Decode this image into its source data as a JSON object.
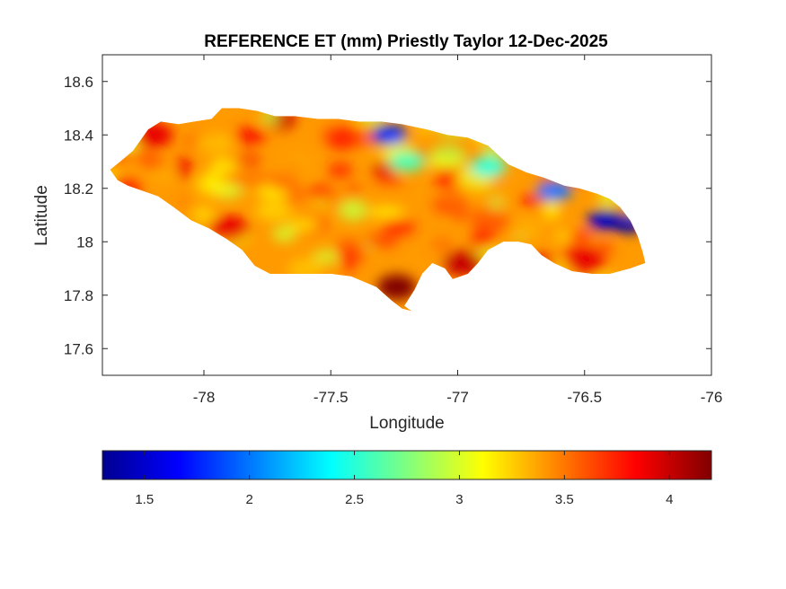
{
  "chart_data": {
    "type": "heatmap",
    "title": "REFERENCE ET (mm) Priestly Taylor 12-Dec-2025",
    "xlabel": "Longitude",
    "ylabel": "Latitude",
    "xlim": [
      -78.4,
      -76
    ],
    "ylim": [
      17.5,
      18.7
    ],
    "xticks": [
      -78,
      -77.5,
      -77,
      -76.5,
      -76
    ],
    "yticks": [
      17.6,
      17.8,
      18,
      18.2,
      18.4,
      18.6
    ],
    "colorbar": {
      "orientation": "horizontal",
      "placement": "bottom",
      "colormap": "jet",
      "range": [
        1.3,
        4.2
      ],
      "ticks": [
        1.5,
        2,
        2.5,
        3,
        3.5,
        4
      ]
    },
    "field_summary": {
      "region": "Jamaica",
      "low_areas": [
        {
          "lon": -76.42,
          "lat": 18.08,
          "value": 1.5
        },
        {
          "lon": -76.33,
          "lat": 18.07,
          "value": 1.4
        },
        {
          "lon": -76.62,
          "lat": 18.19,
          "value": 2.0
        },
        {
          "lon": -77.27,
          "lat": 18.4,
          "value": 1.8
        },
        {
          "lon": -76.88,
          "lat": 18.28,
          "value": 2.5
        },
        {
          "lon": -77.2,
          "lat": 18.3,
          "value": 2.6
        }
      ],
      "high_areas": [
        {
          "lon": -77.24,
          "lat": 17.83,
          "value": 4.2
        },
        {
          "lon": -76.98,
          "lat": 17.92,
          "value": 4.0
        },
        {
          "lon": -78.2,
          "lat": 18.4,
          "value": 3.9
        },
        {
          "lon": -76.5,
          "lat": 17.93,
          "value": 3.9
        },
        {
          "lon": -77.9,
          "lat": 18.05,
          "value": 3.9
        }
      ],
      "typical_value": 3.4
    }
  }
}
